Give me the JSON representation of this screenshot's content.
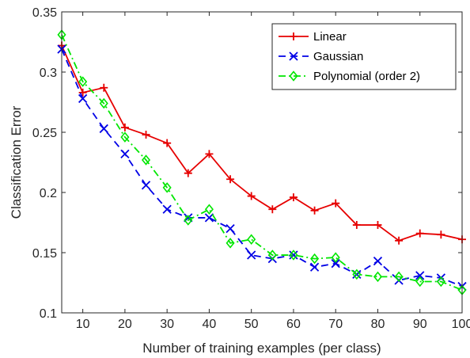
{
  "chart_data": {
    "type": "line",
    "title": "",
    "xlabel": "Number of training examples (per class)",
    "ylabel": "Classification Error",
    "xlim": [
      5,
      100
    ],
    "ylim": [
      0.1,
      0.35
    ],
    "xticks": [
      10,
      20,
      30,
      40,
      50,
      60,
      70,
      80,
      90,
      100
    ],
    "xtick_labels": [
      "10",
      "20",
      "30",
      "40",
      "50",
      "60",
      "70",
      "80",
      "90",
      "100"
    ],
    "yticks": [
      0.1,
      0.15,
      0.2,
      0.25,
      0.3,
      0.35
    ],
    "ytick_labels": [
      "0.1",
      "0.15",
      "0.2",
      "0.25",
      "0.3",
      "0.35"
    ],
    "grid": false,
    "legend_position": "top-right",
    "x": [
      5,
      10,
      15,
      20,
      25,
      30,
      35,
      40,
      45,
      50,
      55,
      60,
      65,
      70,
      75,
      80,
      85,
      90,
      95,
      100
    ],
    "series": [
      {
        "name": "Linear",
        "color": "#e60000",
        "marker": "plus",
        "dash": "solid",
        "values": [
          0.322,
          0.283,
          0.287,
          0.254,
          0.248,
          0.241,
          0.216,
          0.232,
          0.211,
          0.197,
          0.186,
          0.196,
          0.185,
          0.191,
          0.173,
          0.173,
          0.16,
          0.166,
          0.165,
          0.161
        ]
      },
      {
        "name": "Gaussian",
        "color": "#0000e6",
        "marker": "x",
        "dash": "dashed",
        "values": [
          0.319,
          0.278,
          0.253,
          0.232,
          0.206,
          0.186,
          0.179,
          0.179,
          0.17,
          0.148,
          0.145,
          0.148,
          0.138,
          0.141,
          0.132,
          0.143,
          0.127,
          0.131,
          0.129,
          0.122
        ]
      },
      {
        "name": "Polynomial (order 2)",
        "color": "#00e600",
        "marker": "diamond",
        "dash": "dashdot",
        "values": [
          0.331,
          0.292,
          0.274,
          0.246,
          0.227,
          0.204,
          0.177,
          0.186,
          0.158,
          0.161,
          0.148,
          0.148,
          0.145,
          0.146,
          0.132,
          0.13,
          0.13,
          0.126,
          0.126,
          0.119
        ]
      }
    ]
  }
}
